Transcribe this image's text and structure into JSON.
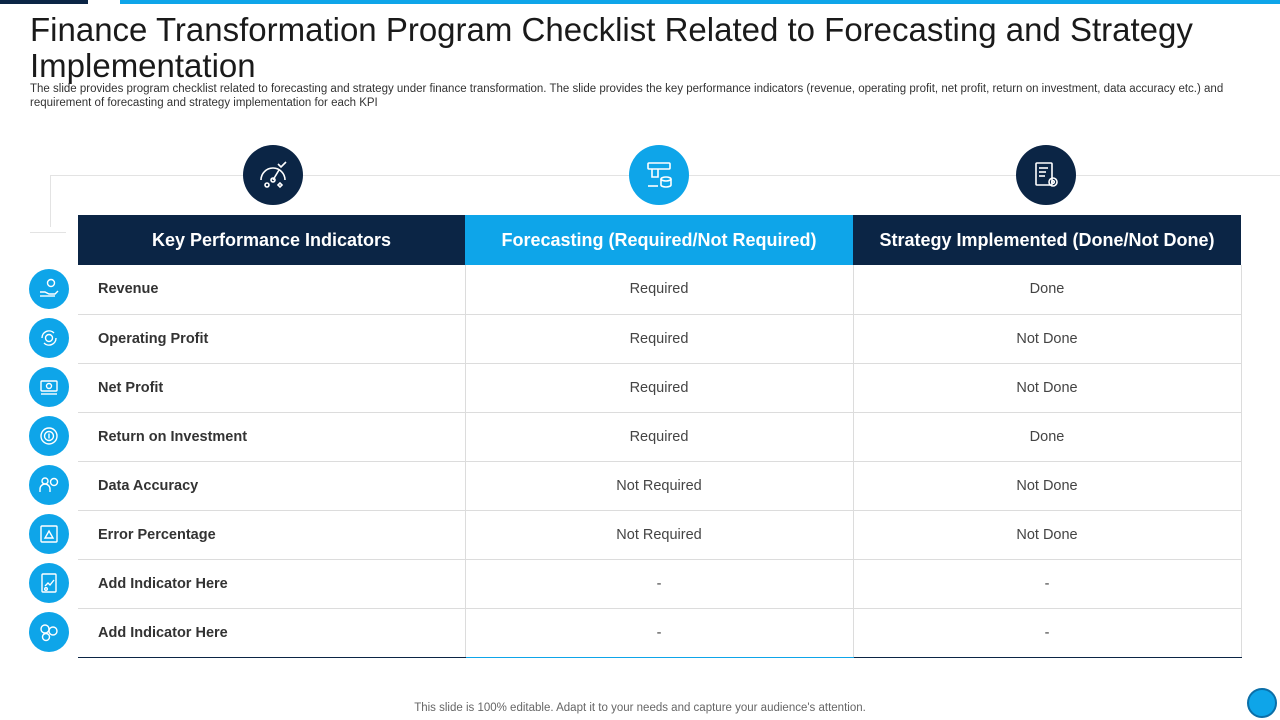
{
  "header": {
    "title": "Finance Transformation Program Checklist Related to Forecasting and Strategy Implementation",
    "subtitle": "The slide provides program checklist related to forecasting and strategy under finance transformation. The slide provides the key performance indicators (revenue, operating profit, net profit, return on investment, data accuracy etc.) and requirement of forecasting and strategy implementation for each KPI"
  },
  "column_icons": [
    "gauge-target-icon",
    "hand-money-coins-icon",
    "report-gear-icon"
  ],
  "table": {
    "columns": [
      "Key Performance Indicators",
      "Forecasting (Required/Not Required)",
      "Strategy Implemented (Done/Not Done)"
    ],
    "rows": [
      {
        "kpi": "Revenue",
        "forecasting": "Required",
        "strategy": "Done",
        "icon": "hand-coin-icon"
      },
      {
        "kpi": "Operating Profit",
        "forecasting": "Required",
        "strategy": "Not Done",
        "icon": "dollar-cycle-icon"
      },
      {
        "kpi": "Net Profit",
        "forecasting": "Required",
        "strategy": "Not Done",
        "icon": "money-stack-icon"
      },
      {
        "kpi": "Return on Investment",
        "forecasting": "Required",
        "strategy": "Done",
        "icon": "dollar-return-icon"
      },
      {
        "kpi": "Data Accuracy",
        "forecasting": "Not Required",
        "strategy": "Not Done",
        "icon": "people-data-icon"
      },
      {
        "kpi": "Error Percentage",
        "forecasting": "Not Required",
        "strategy": "Not Done",
        "icon": "warning-window-icon"
      },
      {
        "kpi": "Add  Indicator Here",
        "forecasting": "-",
        "strategy": "-",
        "icon": "chart-report-icon"
      },
      {
        "kpi": "Add  Indicator Here",
        "forecasting": "-",
        "strategy": "-",
        "icon": "coins-icon"
      }
    ]
  },
  "footer": "This slide is 100% editable. Adapt it to your needs and capture your audience's attention.",
  "colors": {
    "navy": "#0b2545",
    "blue": "#0ea5e9"
  }
}
